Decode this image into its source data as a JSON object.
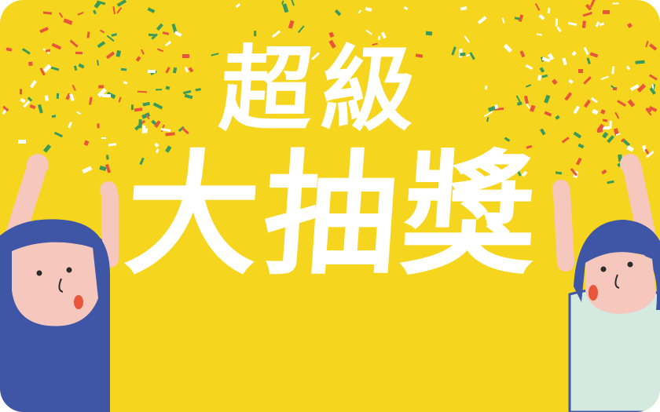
{
  "banner": {
    "title_line_1": "超級",
    "title_line_2": "大抽獎"
  },
  "colors": {
    "background": "#f6d51f",
    "text": "#ffffff",
    "confetti_red": "#e8553a",
    "confetti_green": "#3a9a5b",
    "confetti_white": "#ffffff",
    "hair": "#3f55a5",
    "skin": "#f5c7bd",
    "shirt_right": "#d4eae0"
  },
  "illustration": {
    "left_figure": "cheering-girl-left",
    "right_figure": "cheering-girl-right"
  }
}
